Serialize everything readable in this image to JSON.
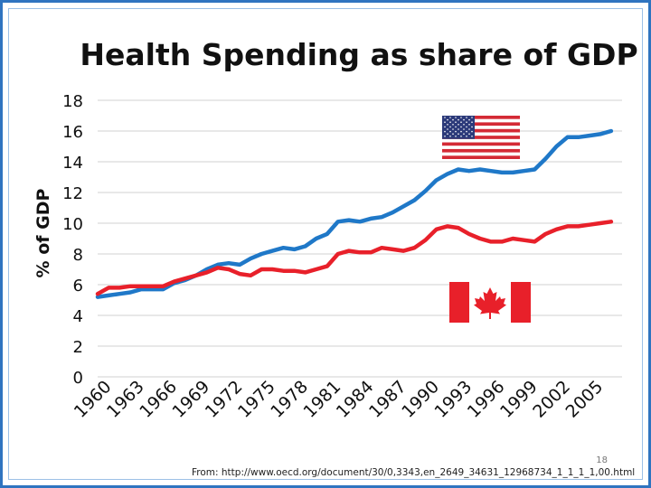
{
  "chart_data": {
    "type": "line",
    "title": "Health Spending as share of GDP",
    "xlabel": "",
    "ylabel": "% of GDP",
    "ylim": [
      0,
      18
    ],
    "yticks": [
      0,
      2,
      4,
      6,
      8,
      10,
      12,
      14,
      16,
      18
    ],
    "xticks": [
      1960,
      1963,
      1966,
      1969,
      1972,
      1975,
      1978,
      1981,
      1984,
      1987,
      1990,
      1993,
      1996,
      1999,
      2002,
      2005
    ],
    "x": [
      1960,
      1961,
      1962,
      1963,
      1964,
      1965,
      1966,
      1967,
      1968,
      1969,
      1970,
      1971,
      1972,
      1973,
      1974,
      1975,
      1976,
      1977,
      1978,
      1979,
      1980,
      1981,
      1982,
      1983,
      1984,
      1985,
      1986,
      1987,
      1988,
      1989,
      1990,
      1991,
      1992,
      1993,
      1994,
      1995,
      1996,
      1997,
      1998,
      1999,
      2000,
      2001,
      2002,
      2003,
      2004,
      2005,
      2006,
      2007
    ],
    "grid": "horizontal",
    "series": [
      {
        "name": "United States",
        "color": "#1f78c8",
        "flag": "us-flag",
        "values": [
          5.2,
          5.3,
          5.4,
          5.5,
          5.7,
          5.7,
          5.7,
          6.1,
          6.3,
          6.6,
          7.0,
          7.3,
          7.4,
          7.3,
          7.7,
          8.0,
          8.2,
          8.4,
          8.3,
          8.5,
          9.0,
          9.3,
          10.1,
          10.2,
          10.1,
          10.3,
          10.4,
          10.7,
          11.1,
          11.5,
          12.1,
          12.8,
          13.2,
          13.5,
          13.4,
          13.5,
          13.4,
          13.3,
          13.3,
          13.4,
          13.5,
          14.2,
          15.0,
          15.6,
          15.6,
          15.7,
          15.8,
          16.0
        ]
      },
      {
        "name": "Canada",
        "color": "#e8202a",
        "flag": "canada-flag",
        "values": [
          5.4,
          5.8,
          5.8,
          5.9,
          5.9,
          5.9,
          5.9,
          6.2,
          6.4,
          6.6,
          6.8,
          7.1,
          7.0,
          6.7,
          6.6,
          7.0,
          7.0,
          6.9,
          6.9,
          6.8,
          7.0,
          7.2,
          8.0,
          8.2,
          8.1,
          8.1,
          8.4,
          8.3,
          8.2,
          8.4,
          8.9,
          9.6,
          9.8,
          9.7,
          9.3,
          9.0,
          8.8,
          8.8,
          9.0,
          8.9,
          8.8,
          9.3,
          9.6,
          9.8,
          9.8,
          9.9,
          10.0,
          10.1
        ]
      }
    ]
  },
  "footer": {
    "source": "From: http://www.oecd.org/document/30/0,3343,en_2649_34631_12968734_1_1_1_1,00.html",
    "page_number": "18"
  },
  "colors": {
    "frame": "#2f74c0",
    "grid": "#d0d0d0"
  }
}
